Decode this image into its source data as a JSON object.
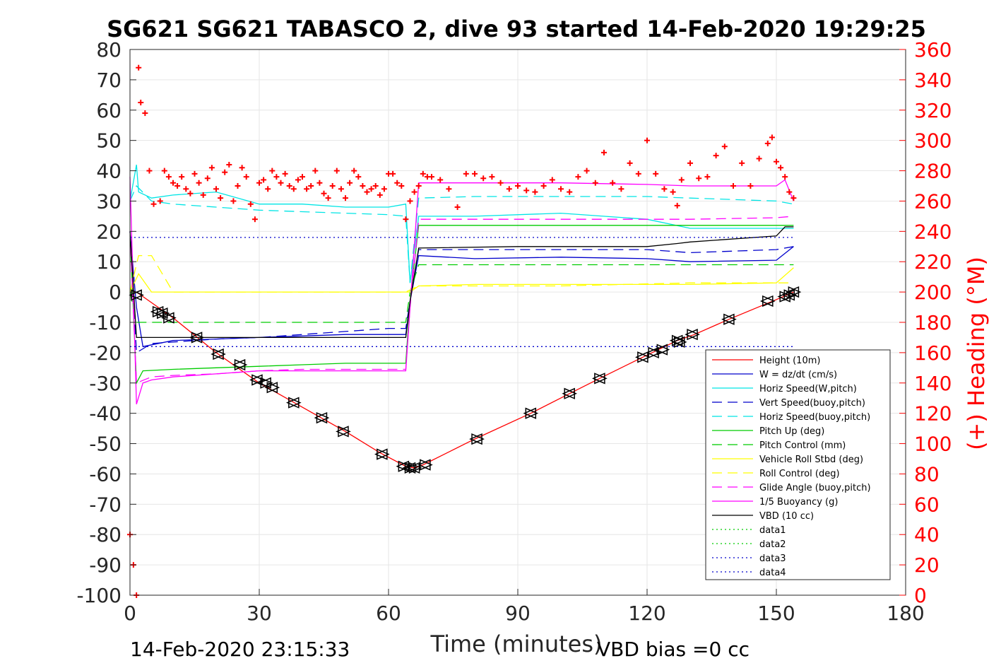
{
  "chart_data": {
    "type": "line",
    "title": "SG621 SG621 TABASCO 2, dive 93 started 14-Feb-2020 19:29:25",
    "xlabel": "Time (minutes)",
    "ylabel_right": "(+) Heading (°M)",
    "xlim": [
      0,
      180
    ],
    "ylim": [
      -100,
      80
    ],
    "ylim_right": [
      0,
      360
    ],
    "x_ticks": [
      "0",
      "30",
      "60",
      "90",
      "120",
      "150",
      "180"
    ],
    "y_ticks": [
      "80",
      "70",
      "60",
      "50",
      "40",
      "30",
      "20",
      "10",
      "0",
      "-10",
      "-20",
      "-30",
      "-40",
      "-50",
      "-60",
      "-70",
      "-80",
      "-90",
      "-100"
    ],
    "y_ticks_right": [
      "360",
      "340",
      "320",
      "300",
      "280",
      "260",
      "240",
      "220",
      "200",
      "180",
      "160",
      "140",
      "120",
      "100",
      "80",
      "60",
      "40",
      "20",
      "0"
    ],
    "grid": true,
    "legend_placement": "bottom-right",
    "footer_left": "14-Feb-2020 23:15:33",
    "footer_right": "VBD bias =0 cc",
    "series": [
      {
        "name": "Height (10m)",
        "color": "#ff0000",
        "style": "solid",
        "x": [
          0,
          1.5,
          10,
          20,
          30,
          40,
          50,
          58,
          64,
          66,
          68,
          80,
          93,
          102,
          109,
          119,
          127,
          131,
          139,
          150,
          154
        ],
        "y": [
          0,
          0,
          -8.5,
          -20,
          -30,
          -38,
          -46,
          -53,
          -57.5,
          -58,
          -57,
          -48.5,
          -40,
          -33.5,
          -28.5,
          -21.5,
          -16,
          -14,
          -9,
          -2.5,
          0
        ]
      },
      {
        "name": "W = dz/dt (cm/s)",
        "color": "#0000cc",
        "style": "solid",
        "x": [
          0,
          1.5,
          3,
          10,
          20,
          30,
          40,
          50,
          60,
          64,
          65,
          67,
          80,
          100,
          120,
          130,
          150,
          154
        ],
        "y": [
          20,
          -5,
          -18,
          -16,
          -15.5,
          -15,
          -14.5,
          -14,
          -14,
          -14,
          -3,
          12,
          11,
          11.5,
          11,
          10,
          10.5,
          15
        ]
      },
      {
        "name": "Horiz Speed(W,pitch)",
        "color": "#00e5e5",
        "style": "solid",
        "x": [
          0,
          1.5,
          2,
          5,
          10,
          20,
          30,
          40,
          50,
          60,
          64,
          65,
          67,
          80,
          100,
          120,
          130,
          150,
          154
        ],
        "y": [
          30,
          42,
          33,
          31,
          32,
          33,
          29,
          29,
          28,
          28,
          29,
          3,
          25,
          25,
          26,
          24,
          21,
          21,
          21
        ]
      },
      {
        "name": "Vert Speed(buoy,pitch)",
        "color": "#0000cc",
        "style": "dashed",
        "x": [
          0,
          1.5,
          5,
          10,
          20,
          30,
          40,
          50,
          60,
          64,
          65,
          67,
          80,
          100,
          120,
          130,
          150,
          154
        ],
        "y": [
          20,
          -20,
          -17,
          -16.5,
          -15.5,
          -15,
          -14,
          -13,
          -12,
          -12,
          -3,
          14,
          14,
          14,
          14,
          13,
          14,
          15
        ]
      },
      {
        "name": "Horiz Speed(buoy,pitch)",
        "color": "#00e5e5",
        "style": "dashed",
        "x": [
          0,
          1.5,
          5,
          10,
          20,
          30,
          40,
          50,
          60,
          64,
          65,
          67,
          80,
          100,
          120,
          130,
          150,
          154
        ],
        "y": [
          30,
          35,
          30,
          29,
          28,
          27,
          26.5,
          26,
          25.5,
          25,
          3,
          31,
          31.5,
          31.5,
          31.5,
          31,
          30,
          29
        ]
      },
      {
        "name": "Pitch Up (deg)",
        "color": "#00cc00",
        "style": "solid",
        "x": [
          0,
          1.5,
          3,
          10,
          20,
          30,
          40,
          50,
          60,
          64,
          65,
          67,
          80,
          100,
          120,
          130,
          150,
          154
        ],
        "y": [
          20,
          -30,
          -26,
          -25.5,
          -25,
          -24.5,
          -24,
          -23.5,
          -23.5,
          -23.5,
          -3,
          22,
          22,
          22,
          22,
          22,
          22,
          22
        ]
      },
      {
        "name": "Pitch Control (mm)",
        "color": "#00cc00",
        "style": "dashed",
        "x": [
          0,
          1.5,
          5,
          10,
          30,
          60,
          64,
          65,
          67,
          100,
          130,
          154
        ],
        "y": [
          0,
          -10,
          -10,
          -10,
          -10,
          -10,
          -10,
          0,
          9,
          9,
          9,
          9
        ]
      },
      {
        "name": "Vehicle Roll Stbd (deg)",
        "color": "#ffff00",
        "style": "solid",
        "x": [
          0,
          2,
          5,
          10,
          20,
          30,
          40,
          50,
          60,
          64,
          65,
          67,
          80,
          100,
          120,
          130,
          150,
          154
        ],
        "y": [
          0,
          6,
          0,
          0,
          0,
          0,
          0,
          0,
          0,
          0,
          0,
          2,
          2.5,
          2.5,
          2.5,
          2.5,
          3,
          8
        ]
      },
      {
        "name": "Roll Control (deg)",
        "color": "#ffff00",
        "style": "dashed",
        "x": [
          0,
          2,
          5,
          10,
          30,
          60,
          64,
          67,
          100,
          130,
          154
        ],
        "y": [
          0,
          12,
          12,
          0,
          0,
          0,
          0,
          2,
          2,
          3,
          3
        ]
      },
      {
        "name": "Glide Angle (buoy,pitch)",
        "color": "#ff00ff",
        "style": "dashed",
        "x": [
          0,
          1.5,
          5,
          10,
          20,
          30,
          40,
          50,
          60,
          64,
          65,
          67,
          80,
          100,
          120,
          130,
          150,
          154
        ],
        "y": [
          20,
          -30,
          -28,
          -27.5,
          -27,
          -26,
          -25.5,
          -25.5,
          -25.5,
          -25.5,
          -5,
          24,
          24,
          24,
          24,
          24,
          24.5,
          25
        ]
      },
      {
        "name": "1/5 Buoyancy (g)",
        "color": "#ff00ff",
        "style": "solid",
        "x": [
          0,
          1.5,
          3,
          5,
          10,
          20,
          30,
          40,
          50,
          60,
          64,
          65,
          67,
          80,
          100,
          120,
          130,
          150,
          152,
          154
        ],
        "y": [
          38,
          -37,
          -30,
          -29,
          -28,
          -27,
          -26,
          -26,
          -26,
          -26,
          -26,
          -5,
          36,
          36,
          36,
          35.5,
          35,
          35,
          37,
          30
        ]
      },
      {
        "name": "VBD (10 cc)",
        "color": "#000000",
        "style": "solid",
        "x": [
          0,
          1.5,
          2,
          10,
          30,
          60,
          64,
          65,
          67,
          90,
          120,
          127,
          130,
          150,
          152,
          154
        ],
        "y": [
          20,
          -15,
          -15,
          -15,
          -15,
          -15,
          -15,
          -3,
          14.5,
          15,
          15,
          16,
          16.5,
          18.5,
          21.5,
          21.5
        ]
      },
      {
        "name": "data1",
        "color": "#00cc00",
        "style": "dotted",
        "x": [],
        "y": []
      },
      {
        "name": "data2",
        "color": "#00cc00",
        "style": "dotted",
        "x": [],
        "y": []
      },
      {
        "name": "data3",
        "color": "#0000cc",
        "style": "dotted",
        "x": [
          0,
          154
        ],
        "y": [
          18,
          18
        ]
      },
      {
        "name": "data4",
        "color": "#0000cc",
        "style": "dotted",
        "x": [
          0,
          154
        ],
        "y": [
          -18,
          -18
        ]
      }
    ],
    "heading_series": {
      "color": "#ff0000",
      "marker": "+",
      "axis": "right",
      "x": [
        0,
        0.8,
        1.5,
        2,
        2.5,
        3.5,
        4.5,
        5.5,
        7,
        8,
        9,
        10,
        11,
        12,
        13,
        14,
        15,
        16,
        17,
        18,
        19,
        20,
        21,
        22,
        23,
        24,
        25,
        26,
        27,
        28,
        29,
        30,
        31,
        32,
        33,
        34,
        35,
        36,
        37,
        38,
        39,
        40,
        41,
        42,
        43,
        44,
        45,
        46,
        47,
        48,
        49,
        50,
        51,
        52,
        53,
        54,
        55,
        56,
        57,
        58,
        59,
        60,
        61,
        62,
        63,
        64,
        65,
        66,
        67,
        68,
        69,
        70,
        72,
        74,
        76,
        78,
        80,
        82,
        84,
        86,
        88,
        90,
        92,
        94,
        96,
        98,
        100,
        102,
        104,
        106,
        108,
        110,
        112,
        114,
        116,
        118,
        120,
        122,
        124,
        126,
        127,
        128,
        130,
        132,
        134,
        136,
        138,
        140,
        142,
        144,
        146,
        148,
        149,
        150,
        151,
        152,
        153,
        154
      ],
      "y": [
        40,
        20,
        0,
        348,
        325,
        318,
        280,
        258,
        260,
        280,
        276,
        272,
        270,
        276,
        268,
        265,
        278,
        272,
        264,
        275,
        282,
        268,
        262,
        279,
        284,
        260,
        270,
        282,
        276,
        258,
        248,
        272,
        274,
        268,
        280,
        276,
        272,
        278,
        270,
        268,
        274,
        276,
        268,
        270,
        280,
        272,
        265,
        262,
        270,
        280,
        268,
        262,
        272,
        280,
        276,
        270,
        266,
        268,
        270,
        264,
        268,
        278,
        278,
        272,
        270,
        248,
        260,
        266,
        270,
        278,
        276,
        276,
        274,
        268,
        256,
        278,
        278,
        275,
        276,
        272,
        268,
        270,
        267,
        266,
        270,
        274,
        268,
        266,
        276,
        280,
        272,
        292,
        272,
        268,
        285,
        278,
        300,
        278,
        268,
        266,
        257,
        274,
        285,
        275,
        276,
        290,
        296,
        270,
        285,
        270,
        288,
        298,
        302,
        286,
        282,
        276,
        266,
        262
      ]
    },
    "triangle_markers": {
      "x": [
        1.5,
        6.5,
        7.5,
        9,
        15.5,
        20.5,
        25.5,
        29.5,
        31.5,
        33,
        38,
        44.5,
        49.5,
        58.5,
        63.5,
        65,
        66,
        68.5,
        80.5,
        93,
        102,
        109,
        119,
        121.5,
        123.5,
        127,
        127.5,
        130.5,
        139,
        148,
        152,
        153,
        154
      ],
      "y": [
        -1,
        -6.5,
        -7,
        -8.5,
        -15,
        -20.5,
        -24,
        -29,
        -30,
        -31.5,
        -36.5,
        -41.5,
        -46,
        -53.5,
        -57.5,
        -58,
        -58,
        -57,
        -48.5,
        -40,
        -33.5,
        -28.5,
        -21.5,
        -20,
        -19,
        -16,
        -16.5,
        -14,
        -9,
        -3,
        -1.5,
        -1,
        0
      ]
    }
  }
}
